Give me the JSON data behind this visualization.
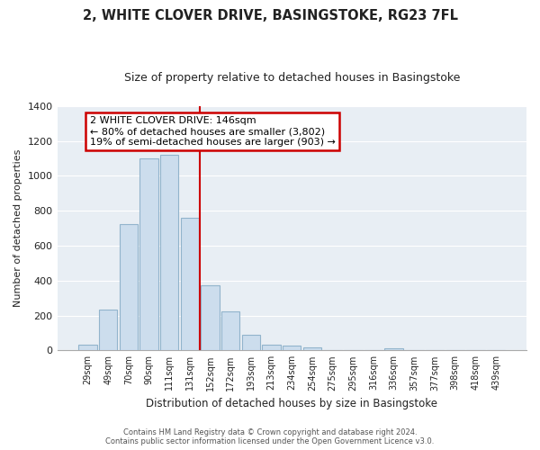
{
  "title": "2, WHITE CLOVER DRIVE, BASINGSTOKE, RG23 7FL",
  "subtitle": "Size of property relative to detached houses in Basingstoke",
  "xlabel": "Distribution of detached houses by size in Basingstoke",
  "ylabel": "Number of detached properties",
  "bar_labels": [
    "29sqm",
    "49sqm",
    "70sqm",
    "90sqm",
    "111sqm",
    "131sqm",
    "152sqm",
    "172sqm",
    "193sqm",
    "213sqm",
    "234sqm",
    "254sqm",
    "275sqm",
    "295sqm",
    "316sqm",
    "336sqm",
    "357sqm",
    "377sqm",
    "398sqm",
    "418sqm",
    "439sqm"
  ],
  "bar_values": [
    30,
    235,
    725,
    1100,
    1120,
    760,
    375,
    225,
    90,
    30,
    25,
    15,
    0,
    0,
    0,
    10,
    0,
    0,
    0,
    0,
    0
  ],
  "bar_color": "#ccdded",
  "bar_edge_color": "#92b4cc",
  "vline_x_index": 5.5,
  "vline_color": "#cc0000",
  "annotation_title": "2 WHITE CLOVER DRIVE: 146sqm",
  "annotation_line1": "← 80% of detached houses are smaller (3,802)",
  "annotation_line2": "19% of semi-detached houses are larger (903) →",
  "annotation_box_color": "#ffffff",
  "annotation_box_edge": "#cc0000",
  "ylim": [
    0,
    1400
  ],
  "yticks": [
    0,
    200,
    400,
    600,
    800,
    1000,
    1200,
    1400
  ],
  "footer_line1": "Contains HM Land Registry data © Crown copyright and database right 2024.",
  "footer_line2": "Contains public sector information licensed under the Open Government Licence v3.0.",
  "background_color": "#ffffff",
  "plot_bg_color": "#e8eef4",
  "grid_color": "#ffffff",
  "title_fontsize": 10.5,
  "subtitle_fontsize": 9
}
